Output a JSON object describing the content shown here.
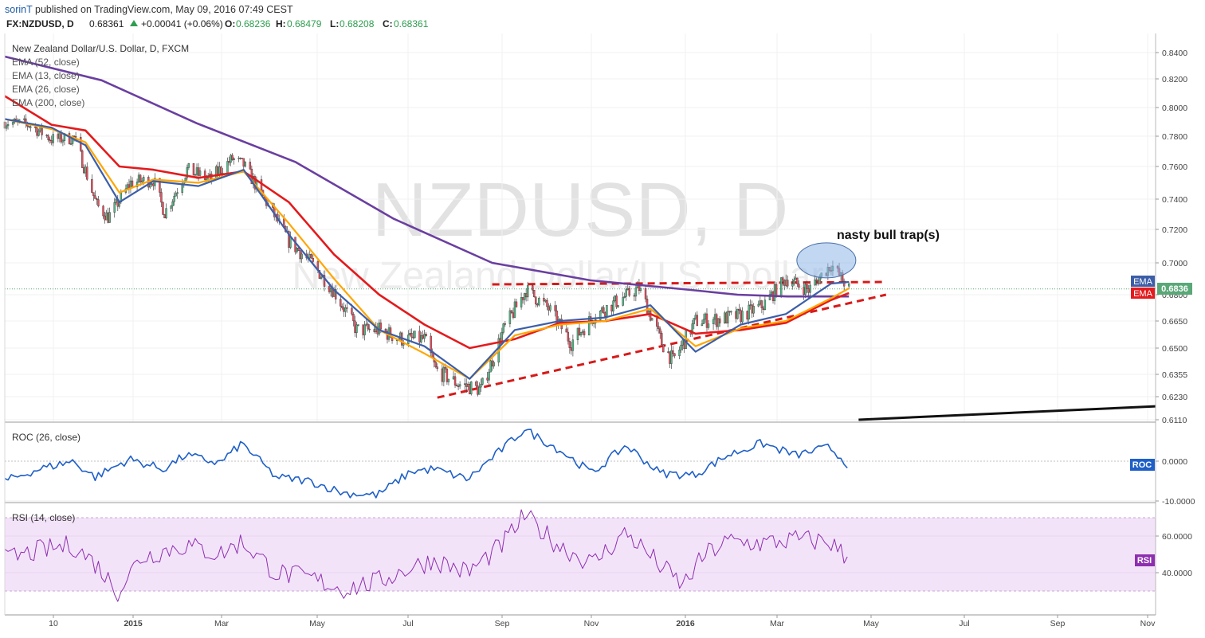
{
  "header": {
    "author": "sorinT",
    "published": "published on TradingView.com, May 09, 2016 07:49 CEST",
    "symbol": "FX:NZDUSD, D",
    "last": "0.68361",
    "change": "+0.00041 (+0.06%)",
    "o_label": "O:",
    "o_value": "0.68236",
    "h_label": "H:",
    "h_value": "0.68479",
    "l_label": "L:",
    "l_value": "0.68208",
    "c_label": "C:",
    "c_value": "0.68361"
  },
  "main_pane": {
    "title": "New Zealand Dollar/U.S. Dollar, D, FXCM",
    "watermark_big": "NZDUSD, D",
    "watermark_small": "New Zealand Dollar/U.S. Dollar",
    "legend": [
      "EMA (52, close)",
      "EMA (13, close)",
      "EMA (26, close)",
      "EMA (200, close)"
    ],
    "annotation": "nasty bull trap(s)",
    "price_tag": "0.6836",
    "ema_tag_1": "EMA",
    "ema_tag_2": "EMA"
  },
  "roc_pane": {
    "title": "ROC (26, close)",
    "tag": "ROC"
  },
  "rsi_pane": {
    "title": "RSI (14, close)",
    "tag": "RSI"
  },
  "colors": {
    "candle_up": "#53b987",
    "candle_down": "#eb4d5c",
    "ema52": "#ffa600",
    "ema13": "#3c5ea8",
    "ema26": "#e41a1c",
    "ema200": "#6a3fa0",
    "roc": "#1e5fc8",
    "rsi": "#8e2fb0",
    "trend_red": "#d71a1a",
    "trend_black": "#111111",
    "ellipse_fill": "#8eb6e8"
  },
  "chart_data": [
    {
      "type": "candlestick",
      "title": "New Zealand Dollar/U.S. Dollar, D, FXCM",
      "x_range": [
        "2014-12-03",
        "2016-11-15"
      ],
      "x_ticks": [
        "10",
        "2015",
        "Mar",
        "May",
        "Jul",
        "Sep",
        "Nov",
        "2016",
        "Mar",
        "May",
        "Jul",
        "Sep",
        "Nov"
      ],
      "y_ticks": [
        "0.8400",
        "0.8200",
        "0.8000",
        "0.7800",
        "0.7600",
        "0.7400",
        "0.7200",
        "0.7000",
        "0.6800",
        "0.6650",
        "0.6500",
        "0.6355",
        "0.6230",
        "0.6110"
      ],
      "ylim": [
        0.6105,
        0.8435
      ],
      "last_price": 0.6836,
      "close_path": [
        [
          "2014-12-03",
          0.79
        ],
        [
          "2014-12-18",
          0.788
        ],
        [
          "2015-01-01",
          0.778
        ],
        [
          "2015-01-15",
          0.779
        ],
        [
          "2015-01-29",
          0.736
        ],
        [
          "2015-02-05",
          0.728
        ],
        [
          "2015-02-19",
          0.75
        ],
        [
          "2015-03-05",
          0.752
        ],
        [
          "2015-03-12",
          0.731
        ],
        [
          "2015-03-26",
          0.758
        ],
        [
          "2015-04-09",
          0.752
        ],
        [
          "2015-04-23",
          0.765
        ],
        [
          "2015-04-30",
          0.761
        ],
        [
          "2015-05-14",
          0.738
        ],
        [
          "2015-05-28",
          0.713
        ],
        [
          "2015-06-11",
          0.7
        ],
        [
          "2015-06-25",
          0.682
        ],
        [
          "2015-07-09",
          0.66
        ],
        [
          "2015-07-23",
          0.66
        ],
        [
          "2015-08-06",
          0.655
        ],
        [
          "2015-08-20",
          0.655
        ],
        [
          "2015-08-27",
          0.638
        ],
        [
          "2015-09-10",
          0.63
        ],
        [
          "2015-09-24",
          0.627
        ],
        [
          "2015-10-08",
          0.66
        ],
        [
          "2015-10-22",
          0.683
        ],
        [
          "2015-11-05",
          0.672
        ],
        [
          "2015-11-19",
          0.653
        ],
        [
          "2015-12-03",
          0.668
        ],
        [
          "2015-12-17",
          0.676
        ],
        [
          "2015-12-31",
          0.684
        ],
        [
          "2016-01-14",
          0.653
        ],
        [
          "2016-01-21",
          0.643
        ],
        [
          "2016-02-04",
          0.665
        ],
        [
          "2016-02-18",
          0.666
        ],
        [
          "2016-03-03",
          0.668
        ],
        [
          "2016-03-17",
          0.674
        ],
        [
          "2016-03-31",
          0.69
        ],
        [
          "2016-04-14",
          0.683
        ],
        [
          "2016-04-28",
          0.699
        ],
        [
          "2016-05-09",
          0.6836
        ]
      ],
      "series": [
        {
          "name": "EMA (52, close)",
          "values": [
            [
              "2014-12-03",
              0.792
            ],
            [
              "2015-01-01",
              0.785
            ],
            [
              "2015-01-22",
              0.776
            ],
            [
              "2015-02-12",
              0.744
            ],
            [
              "2015-03-05",
              0.752
            ],
            [
              "2015-04-02",
              0.75
            ],
            [
              "2015-04-30",
              0.757
            ],
            [
              "2015-05-28",
              0.724
            ],
            [
              "2015-06-25",
              0.69
            ],
            [
              "2015-07-23",
              0.66
            ],
            [
              "2015-08-20",
              0.647
            ],
            [
              "2015-09-17",
              0.633
            ],
            [
              "2015-10-15",
              0.657
            ],
            [
              "2015-11-12",
              0.663
            ],
            [
              "2015-12-10",
              0.665
            ],
            [
              "2016-01-07",
              0.672
            ],
            [
              "2016-02-04",
              0.651
            ],
            [
              "2016-03-03",
              0.661
            ],
            [
              "2016-03-31",
              0.665
            ],
            [
              "2016-04-28",
              0.678
            ],
            [
              "2016-05-09",
              0.684
            ]
          ]
        },
        {
          "name": "EMA (13, close)",
          "values": [
            [
              "2014-12-03",
              0.792
            ],
            [
              "2015-01-01",
              0.786
            ],
            [
              "2015-01-22",
              0.774
            ],
            [
              "2015-02-12",
              0.738
            ],
            [
              "2015-03-05",
              0.751
            ],
            [
              "2015-04-02",
              0.748
            ],
            [
              "2015-04-30",
              0.758
            ],
            [
              "2015-05-28",
              0.717
            ],
            [
              "2015-06-25",
              0.683
            ],
            [
              "2015-07-23",
              0.66
            ],
            [
              "2015-08-20",
              0.651
            ],
            [
              "2015-09-17",
              0.633
            ],
            [
              "2015-10-15",
              0.66
            ],
            [
              "2015-11-12",
              0.665
            ],
            [
              "2015-12-10",
              0.667
            ],
            [
              "2016-01-07",
              0.674
            ],
            [
              "2016-02-04",
              0.648
            ],
            [
              "2016-03-03",
              0.663
            ],
            [
              "2016-03-31",
              0.669
            ],
            [
              "2016-04-28",
              0.687
            ],
            [
              "2016-05-09",
              0.688
            ]
          ]
        },
        {
          "name": "EMA (26, close)",
          "values": [
            [
              "2014-12-03",
              0.808
            ],
            [
              "2015-01-01",
              0.788
            ],
            [
              "2015-01-22",
              0.784
            ],
            [
              "2015-02-12",
              0.76
            ],
            [
              "2015-03-05",
              0.758
            ],
            [
              "2015-04-02",
              0.753
            ],
            [
              "2015-04-30",
              0.757
            ],
            [
              "2015-05-28",
              0.738
            ],
            [
              "2015-06-25",
              0.705
            ],
            [
              "2015-07-23",
              0.68
            ],
            [
              "2015-08-20",
              0.663
            ],
            [
              "2015-09-17",
              0.65
            ],
            [
              "2015-10-15",
              0.655
            ],
            [
              "2015-11-12",
              0.664
            ],
            [
              "2015-12-10",
              0.665
            ],
            [
              "2016-01-07",
              0.669
            ],
            [
              "2016-02-04",
              0.658
            ],
            [
              "2016-03-03",
              0.66
            ],
            [
              "2016-03-31",
              0.664
            ],
            [
              "2016-04-28",
              0.677
            ],
            [
              "2016-05-09",
              0.681
            ]
          ]
        },
        {
          "name": "EMA (200, close)",
          "values": [
            [
              "2014-12-03",
              0.837
            ],
            [
              "2015-02-01",
              0.819
            ],
            [
              "2015-04-01",
              0.789
            ],
            [
              "2015-06-01",
              0.763
            ],
            [
              "2015-08-01",
              0.727
            ],
            [
              "2015-10-01",
              0.7
            ],
            [
              "2015-12-01",
              0.689
            ],
            [
              "2016-01-01",
              0.686
            ],
            [
              "2016-02-01",
              0.683
            ],
            [
              "2016-03-01",
              0.68
            ],
            [
              "2016-04-01",
              0.679
            ],
            [
              "2016-05-09",
              0.679
            ]
          ]
        },
        {
          "name": "resistance (dashed)",
          "values": [
            [
              "2015-10-01",
              0.6865
            ],
            [
              "2016-06-01",
              0.688
            ]
          ]
        },
        {
          "name": "rising support (dashed)",
          "values": [
            [
              "2015-08-28",
              0.6225
            ],
            [
              "2016-06-01",
              0.68
            ]
          ]
        },
        {
          "name": "long-term support",
          "values": [
            [
              "2016-05-15",
              0.611
            ],
            [
              "2016-11-15",
              0.618
            ]
          ]
        }
      ],
      "annotations": [
        {
          "text": "nasty bull trap(s)",
          "x": "2016-04-20",
          "y": 0.7155
        }
      ]
    },
    {
      "type": "line",
      "title": "ROC (26, close)",
      "y_ticks": [
        "0.0000",
        "-10.0000"
      ],
      "ylim": [
        -11.0,
        9.0
      ],
      "series": [
        {
          "name": "ROC (26, close)",
          "values": [
            [
              "2014-12-03",
              -5.0
            ],
            [
              "2014-12-24",
              -2.0
            ],
            [
              "2015-01-14",
              0.0
            ],
            [
              "2015-01-28",
              -4.0
            ],
            [
              "2015-02-18",
              0.5
            ],
            [
              "2015-03-11",
              -2.0
            ],
            [
              "2015-03-25",
              1.5
            ],
            [
              "2015-04-15",
              -0.5
            ],
            [
              "2015-04-29",
              4.5
            ],
            [
              "2015-05-20",
              -4.0
            ],
            [
              "2015-06-10",
              -5.0
            ],
            [
              "2015-07-01",
              -8.0
            ],
            [
              "2015-07-22",
              -8.5
            ],
            [
              "2015-08-12",
              -2.5
            ],
            [
              "2015-08-26",
              -2.0
            ],
            [
              "2015-09-16",
              -4.5
            ],
            [
              "2015-10-07",
              3.0
            ],
            [
              "2015-10-21",
              8.0
            ],
            [
              "2015-11-11",
              3.0
            ],
            [
              "2015-12-02",
              -3.0
            ],
            [
              "2015-12-23",
              4.0
            ],
            [
              "2016-01-13",
              -3.0
            ],
            [
              "2016-02-03",
              -3.5
            ],
            [
              "2016-02-24",
              1.5
            ],
            [
              "2016-03-16",
              4.5
            ],
            [
              "2016-04-06",
              1.5
            ],
            [
              "2016-04-27",
              3.5
            ],
            [
              "2016-05-09",
              -1.0
            ]
          ]
        }
      ]
    },
    {
      "type": "line",
      "title": "RSI (14, close)",
      "y_ticks": [
        "60.0000",
        "40.0000"
      ],
      "ylim": [
        23.0,
        75.0
      ],
      "bands": [
        30,
        70
      ],
      "series": [
        {
          "name": "RSI (14, close)",
          "values": [
            [
              "2014-12-03",
              47.0
            ],
            [
              "2014-12-24",
              52.0
            ],
            [
              "2015-01-14",
              55.0
            ],
            [
              "2015-01-28",
              45.0
            ],
            [
              "2015-02-11",
              30.0
            ],
            [
              "2015-02-25",
              48.0
            ],
            [
              "2015-03-11",
              52.0
            ],
            [
              "2015-03-25",
              55.0
            ],
            [
              "2015-04-15",
              50.0
            ],
            [
              "2015-04-29",
              57.0
            ],
            [
              "2015-05-20",
              40.0
            ],
            [
              "2015-06-10",
              37.0
            ],
            [
              "2015-07-01",
              31.0
            ],
            [
              "2015-07-22",
              35.0
            ],
            [
              "2015-08-12",
              43.0
            ],
            [
              "2015-08-26",
              47.0
            ],
            [
              "2015-09-16",
              40.0
            ],
            [
              "2015-10-07",
              55.0
            ],
            [
              "2015-10-21",
              71.0
            ],
            [
              "2015-11-11",
              55.0
            ],
            [
              "2015-12-02",
              45.0
            ],
            [
              "2015-12-23",
              62.0
            ],
            [
              "2016-01-13",
              44.0
            ],
            [
              "2016-01-27",
              33.0
            ],
            [
              "2016-02-10",
              50.0
            ],
            [
              "2016-02-24",
              57.0
            ],
            [
              "2016-03-16",
              56.0
            ],
            [
              "2016-04-06",
              58.0
            ],
            [
              "2016-04-27",
              57.0
            ],
            [
              "2016-05-09",
              47.0
            ]
          ]
        }
      ]
    }
  ]
}
